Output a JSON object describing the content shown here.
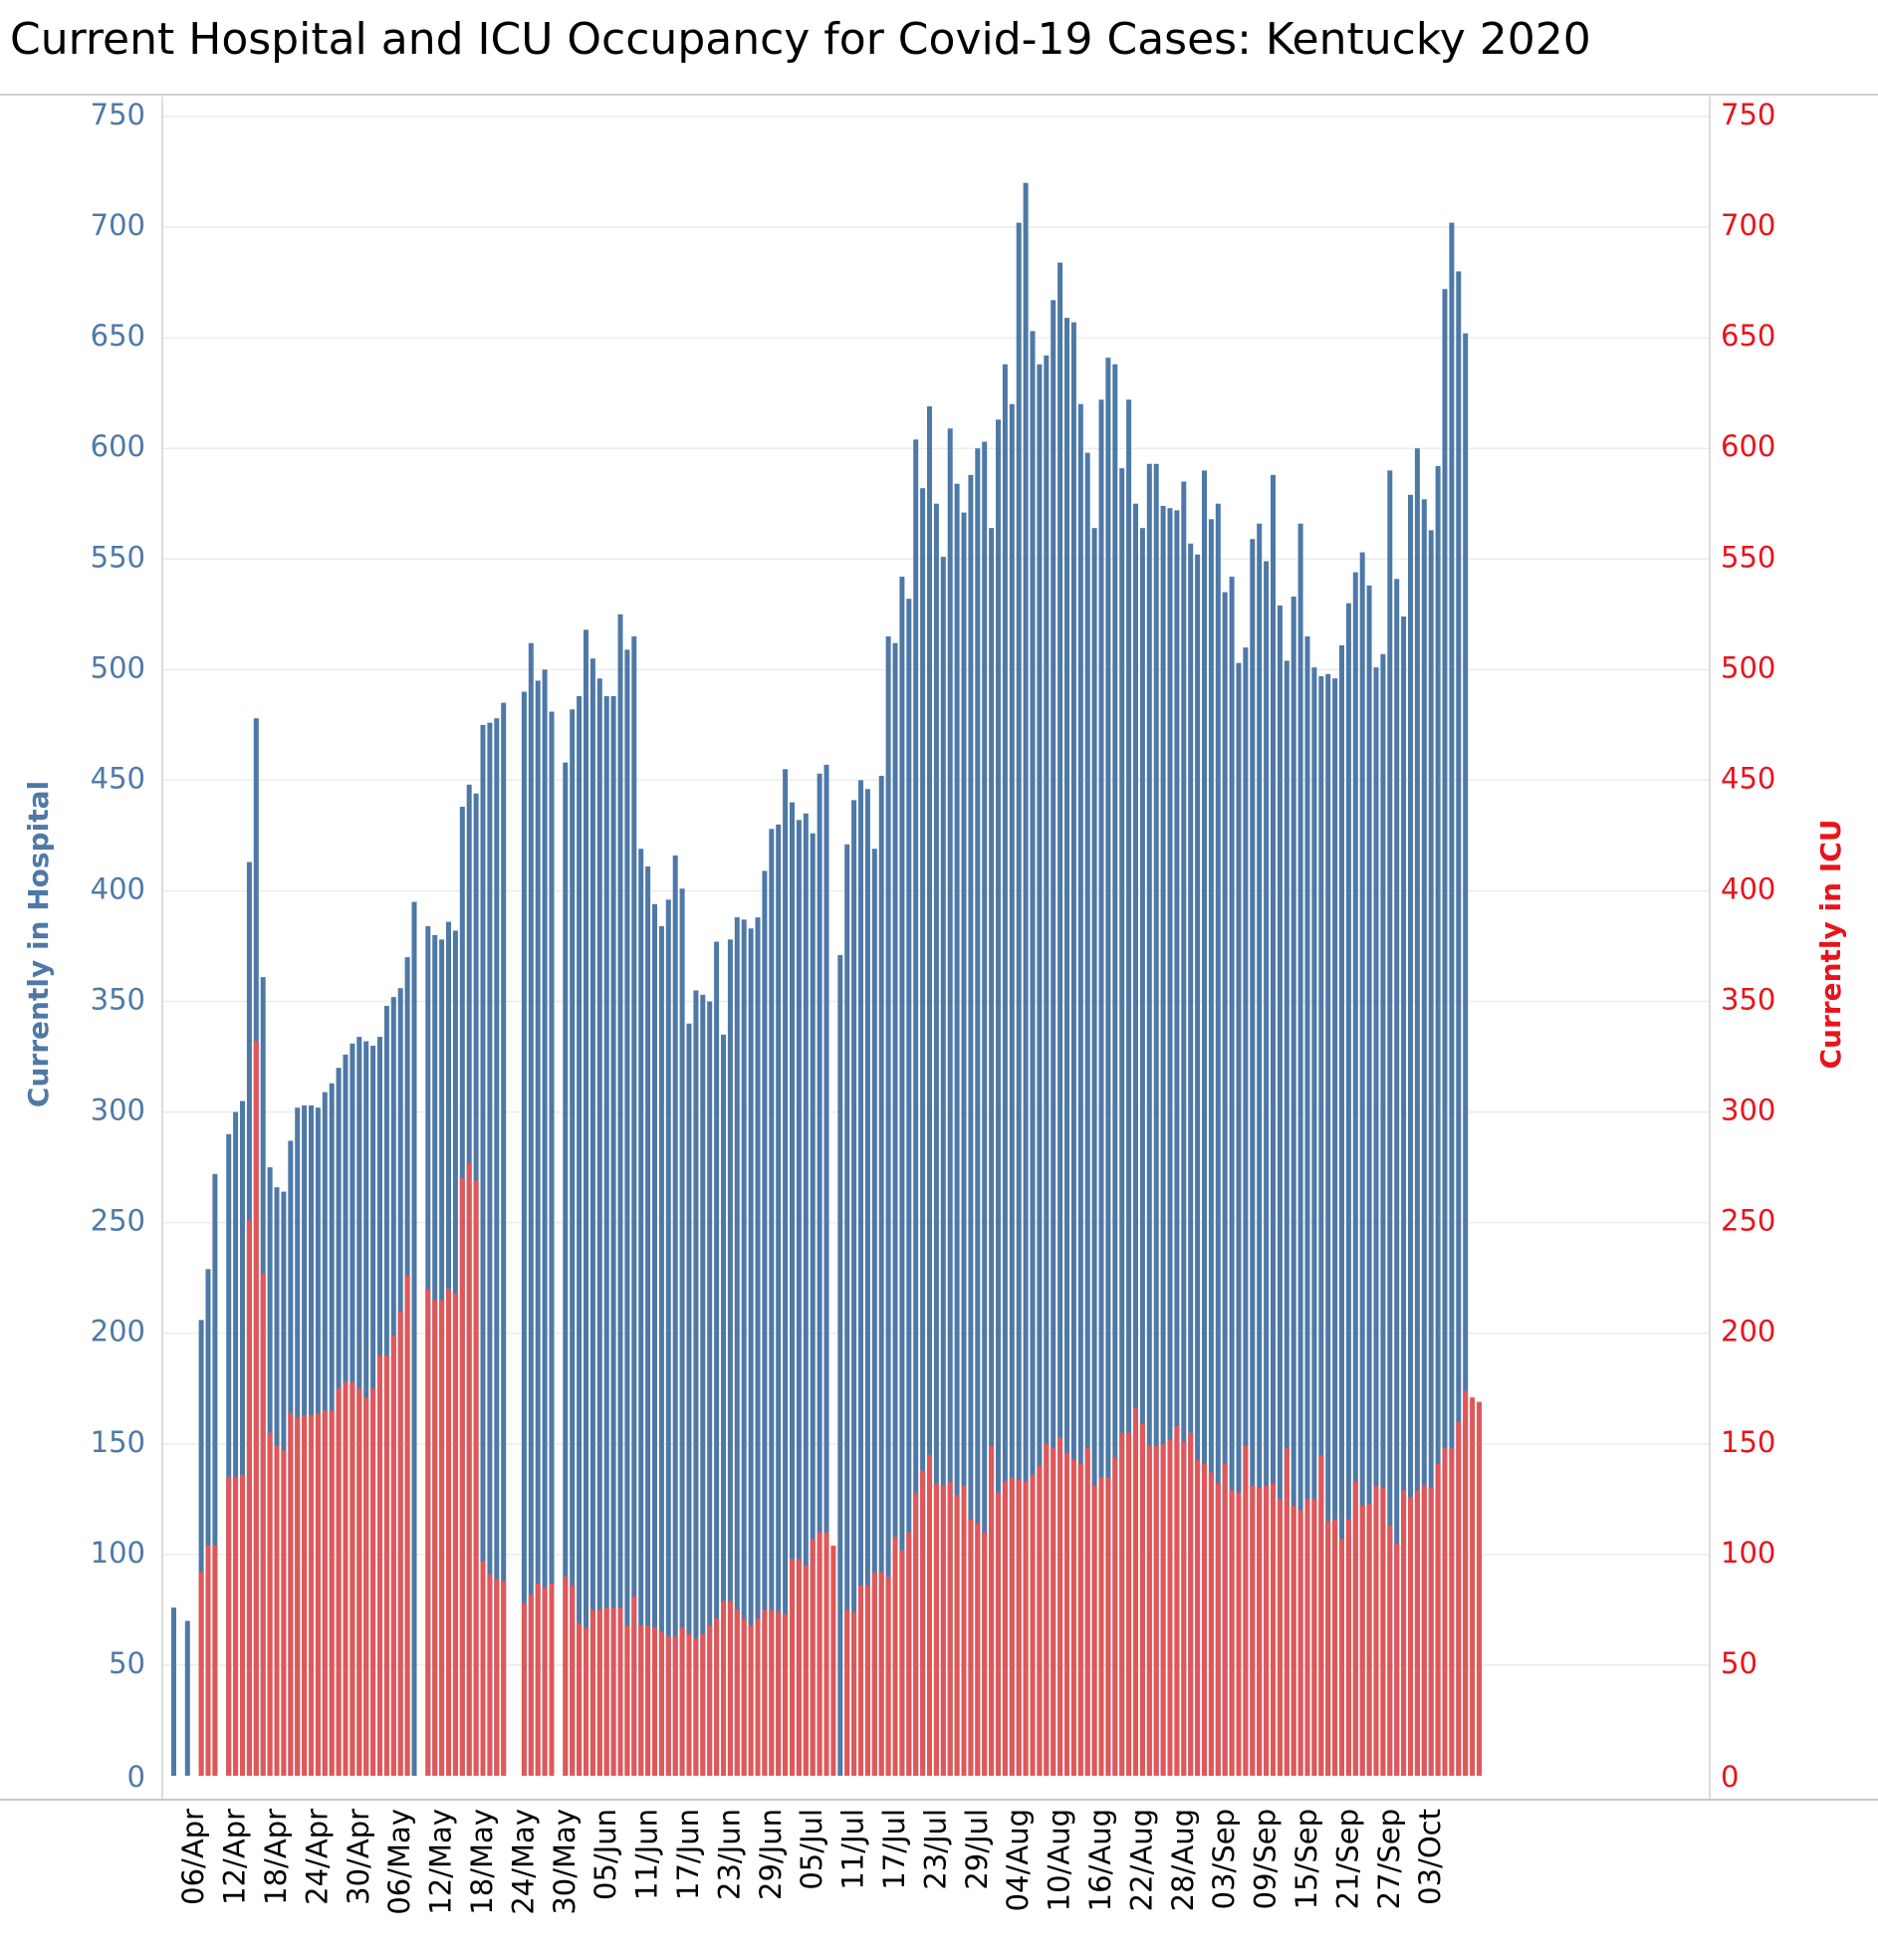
{
  "chart_data": {
    "type": "bar",
    "title": "Current Hospital and ICU Occupancy for Covid-19 Cases:  Kentucky 2020",
    "ylabel_left": "Currently in Hospital",
    "ylabel_right": "Currently in ICU",
    "ylim": [
      0,
      750
    ],
    "yticks": [
      0,
      50,
      100,
      150,
      200,
      250,
      300,
      350,
      400,
      450,
      500,
      550,
      600,
      650,
      700,
      750
    ],
    "grid": "horizontal",
    "colors": {
      "hospital": "#4e79a7",
      "icu": "#e15759",
      "left_axis": "#4e79a7",
      "right_axis": "#e8141b"
    },
    "x_start": "2020-04-03",
    "x_tick_labels": [
      "06/Apr",
      "12/Apr",
      "18/Apr",
      "24/Apr",
      "30/Apr",
      "06/May",
      "12/May",
      "18/May",
      "24/May",
      "30/May",
      "05/Jun",
      "11/Jun",
      "17/Jun",
      "23/Jun",
      "29/Jun",
      "05/Jul",
      "11/Jul",
      "17/Jul",
      "23/Jul",
      "29/Jul",
      "04/Aug",
      "10/Aug",
      "16/Aug",
      "22/Aug",
      "28/Aug",
      "03/Sep",
      "09/Sep",
      "15/Sep",
      "21/Sep",
      "27/Sep",
      "03/Oct"
    ],
    "series": [
      {
        "name": "Currently in Hospital",
        "values": [
          76,
          null,
          70,
          null,
          206,
          229,
          272,
          null,
          290,
          300,
          305,
          413,
          478,
          361,
          275,
          266,
          264,
          287,
          302,
          303,
          303,
          302,
          309,
          313,
          320,
          326,
          331,
          334,
          332,
          330,
          334,
          348,
          352,
          356,
          370,
          395,
          null,
          384,
          380,
          378,
          386,
          382,
          438,
          448,
          444,
          475,
          476,
          478,
          485,
          null,
          null,
          490,
          512,
          495,
          500,
          481,
          null,
          458,
          482,
          488,
          518,
          505,
          496,
          488,
          488,
          525,
          509,
          515,
          419,
          411,
          394,
          384,
          396,
          416,
          401,
          340,
          355,
          353,
          350,
          377,
          335,
          378,
          388,
          387,
          383,
          388,
          409,
          428,
          430,
          455,
          440,
          432,
          435,
          426,
          453,
          457,
          null,
          371,
          421,
          441,
          450,
          446,
          419,
          452,
          515,
          512,
          542,
          532,
          604,
          582,
          619,
          575,
          551,
          609,
          584,
          571,
          588,
          600,
          603,
          564,
          613,
          638,
          620,
          702,
          720,
          653,
          638,
          642,
          667,
          684,
          659,
          657,
          620,
          598,
          564,
          622,
          641,
          638,
          591,
          622,
          575,
          564,
          593,
          593,
          574,
          573,
          572,
          585,
          557,
          552,
          590,
          568,
          575,
          535,
          542,
          503,
          510,
          559,
          566,
          549,
          588,
          529,
          504,
          533,
          566,
          515,
          501,
          497,
          498,
          496,
          511,
          530,
          544,
          553,
          538,
          501,
          507,
          590,
          541,
          524,
          579,
          600,
          577,
          563,
          592,
          672,
          702,
          680,
          652
        ]
      },
      {
        "name": "Currently in ICU",
        "values": [
          null,
          null,
          null,
          null,
          92,
          104,
          104,
          null,
          135,
          135,
          136,
          251,
          332,
          227,
          155,
          149,
          147,
          164,
          162,
          163,
          163,
          164,
          165,
          165,
          175,
          178,
          178,
          175,
          171,
          175,
          190,
          190,
          199,
          210,
          226,
          null,
          null,
          220,
          215,
          215,
          220,
          218,
          270,
          277,
          269,
          97,
          91,
          89,
          88,
          null,
          null,
          78,
          82,
          87,
          85,
          87,
          null,
          90,
          86,
          69,
          67,
          75,
          75,
          76,
          76,
          76,
          68,
          81,
          68,
          68,
          67,
          65,
          63,
          63,
          67,
          64,
          62,
          64,
          68,
          71,
          79,
          79,
          75,
          71,
          68,
          71,
          75,
          75,
          74,
          73,
          98,
          98,
          95,
          107,
          110,
          110,
          104,
          null,
          75,
          74,
          86,
          86,
          92,
          92,
          90,
          108,
          102,
          110,
          128,
          138,
          145,
          132,
          131,
          133,
          127,
          131,
          116,
          114,
          110,
          149,
          128,
          133,
          135,
          134,
          133,
          136,
          140,
          150,
          148,
          153,
          146,
          143,
          141,
          148,
          131,
          135,
          135,
          144,
          155,
          155,
          166,
          159,
          149,
          149,
          150,
          152,
          158,
          151,
          155,
          143,
          141,
          137,
          132,
          141,
          129,
          128,
          149,
          131,
          130,
          131,
          132,
          125,
          148,
          122,
          120,
          125,
          125,
          145,
          115,
          116,
          107,
          116,
          133,
          122,
          123,
          131,
          130,
          113,
          105,
          129,
          126,
          129,
          131,
          130,
          141,
          148,
          148,
          160,
          174,
          171,
          169
        ]
      }
    ]
  }
}
